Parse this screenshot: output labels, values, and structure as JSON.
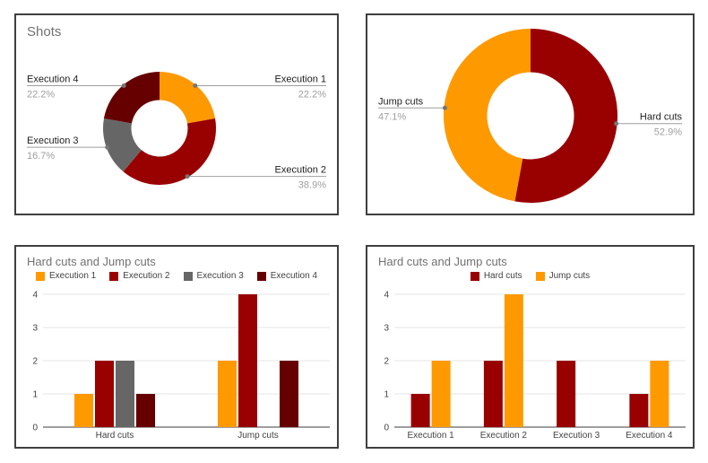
{
  "colors": {
    "orange": "#FF9900",
    "dark_red": "#990000",
    "gray": "#666666",
    "maroon": "#660000",
    "title_text": "#717171",
    "label_text": "#212121",
    "percent_text": "#9e9e9e",
    "axis_text": "#424242",
    "gridline": "#e6e6e6",
    "baseline": "#9e9e9e",
    "callout_line": "#9e9e9e",
    "callout_dot": "#757575",
    "box_border": "#3f3f3f"
  },
  "chart_data": [
    {
      "type": "pie",
      "subtype": "donut",
      "title": "Shots",
      "legend_position": "labeled-callouts",
      "slices": [
        {
          "label": "Execution 1",
          "pct_label": "22.2%",
          "value": 22.2,
          "color_key": "orange"
        },
        {
          "label": "Execution 2",
          "pct_label": "38.9%",
          "value": 38.9,
          "color_key": "dark_red"
        },
        {
          "label": "Execution 3",
          "pct_label": "16.7%",
          "value": 16.7,
          "color_key": "gray"
        },
        {
          "label": "Execution 4",
          "pct_label": "22.2%",
          "value": 22.2,
          "color_key": "maroon"
        }
      ]
    },
    {
      "type": "pie",
      "subtype": "donut",
      "title": "",
      "legend_position": "labeled-callouts",
      "slices": [
        {
          "label": "Hard cuts",
          "pct_label": "52.9%",
          "value": 52.9,
          "color_key": "dark_red"
        },
        {
          "label": "Jump cuts",
          "pct_label": "47.1%",
          "value": 47.1,
          "color_key": "orange"
        }
      ]
    },
    {
      "type": "bar",
      "title": "Hard cuts and Jump cuts",
      "legend_position": "top",
      "grid": true,
      "categories": [
        "Hard cuts",
        "Jump cuts"
      ],
      "series": [
        {
          "name": "Execution 1",
          "color_key": "orange",
          "values": [
            1,
            2
          ]
        },
        {
          "name": "Execution 2",
          "color_key": "dark_red",
          "values": [
            2,
            4
          ]
        },
        {
          "name": "Execution 3",
          "color_key": "gray",
          "values": [
            2,
            0
          ]
        },
        {
          "name": "Execution 4",
          "color_key": "maroon",
          "values": [
            1,
            2
          ]
        }
      ],
      "y_ticks": [
        0,
        1,
        2,
        3,
        4
      ],
      "ylim": [
        0,
        4
      ]
    },
    {
      "type": "bar",
      "title": "Hard cuts and Jump cuts",
      "legend_position": "top",
      "grid": true,
      "categories": [
        "Execution 1",
        "Execution 2",
        "Execution 3",
        "Execution 4"
      ],
      "series": [
        {
          "name": "Hard cuts",
          "color_key": "dark_red",
          "values": [
            1,
            2,
            2,
            1
          ]
        },
        {
          "name": "Jump cuts",
          "color_key": "orange",
          "values": [
            2,
            4,
            0,
            2
          ]
        }
      ],
      "y_ticks": [
        0,
        1,
        2,
        3,
        4
      ],
      "ylim": [
        0,
        4
      ]
    }
  ]
}
